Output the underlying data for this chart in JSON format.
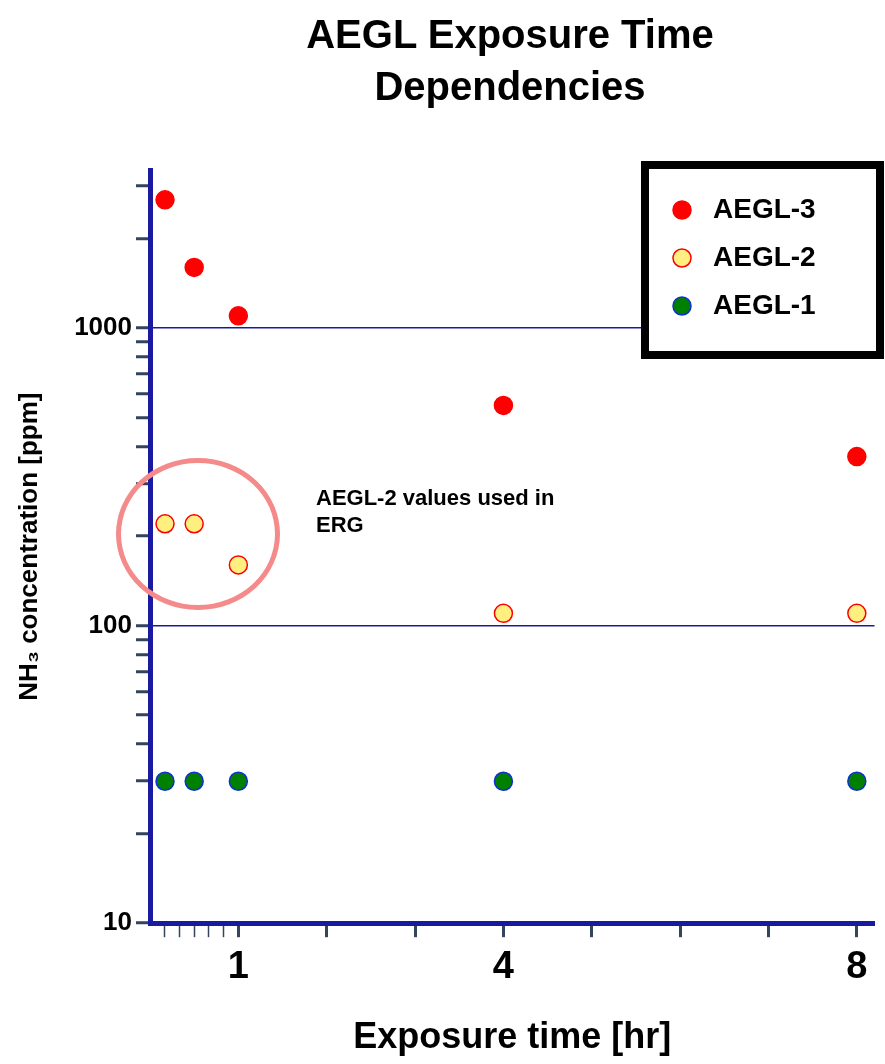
{
  "chart_data": {
    "type": "scatter",
    "title": "AEGL Exposure Time Dependencies",
    "xlabel": "Exposure time [hr]",
    "ylabel": "NH₃ concentration [ppm]",
    "x": [
      0.17,
      0.5,
      1,
      4,
      8
    ],
    "series": [
      {
        "name": "AEGL-3",
        "color": "#ff0000",
        "values": [
          2700,
          1600,
          1100,
          550,
          370
        ]
      },
      {
        "name": "AEGL-2",
        "color": "#ffee80",
        "values": [
          220,
          220,
          160,
          110,
          110
        ]
      },
      {
        "name": "AEGL-1",
        "color": "#008000",
        "values": [
          30,
          30,
          30,
          30,
          30
        ]
      }
    ],
    "log": "y",
    "xlim": [
      0,
      8.2
    ],
    "ylim": [
      10,
      3400
    ],
    "xticks": [
      {
        "value": 0.1667,
        "label": null
      },
      {
        "value": 0.3333,
        "label": null
      },
      {
        "value": 0.5,
        "label": null
      },
      {
        "value": 0.6667,
        "label": null
      },
      {
        "value": 0.8333,
        "label": null
      },
      1,
      {
        "value": 2,
        "label": null
      },
      {
        "value": 3,
        "label": null
      },
      4,
      {
        "value": 5,
        "label": null
      },
      {
        "value": 6,
        "label": null
      },
      {
        "value": 7,
        "label": null
      },
      8
    ],
    "yticks": [
      10,
      {
        "value": 20,
        "label": null
      },
      {
        "value": 30,
        "label": null
      },
      {
        "value": 40,
        "label": null
      },
      {
        "value": 50,
        "label": null
      },
      {
        "value": 60,
        "label": null
      },
      {
        "value": 70,
        "label": null
      },
      {
        "value": 80,
        "label": null
      },
      {
        "value": 90,
        "label": null
      },
      100,
      {
        "value": 200,
        "label": null
      },
      {
        "value": 300,
        "label": null
      },
      {
        "value": 400,
        "label": null
      },
      {
        "value": 500,
        "label": null
      },
      {
        "value": 600,
        "label": null
      },
      {
        "value": 700,
        "label": null
      },
      {
        "value": 800,
        "label": null
      },
      {
        "value": 900,
        "label": null
      },
      1000,
      {
        "value": 2000,
        "label": null
      },
      {
        "value": 3000,
        "label": null
      }
    ],
    "grid": "y",
    "legend": "top right",
    "marker": "circle",
    "annotations": [
      "AEGL-2 values used in ERG"
    ]
  }
}
